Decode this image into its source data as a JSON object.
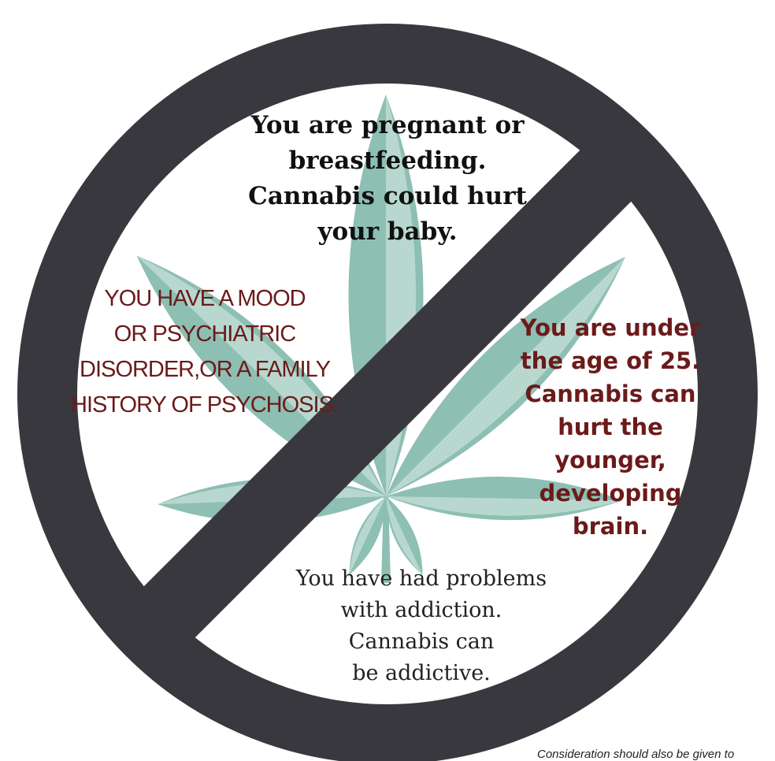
{
  "top_text": {
    "lines": [
      "You are pregnant or",
      "breastfeeding.",
      "Cannabis could hurt",
      "your baby."
    ]
  },
  "left_text": {
    "lines": [
      "YOU HAVE A MOOD",
      "OR PSYCHIATRIC",
      "DISORDER,OR A FAMILY",
      "HISTORY OF PSYCHOSIS."
    ]
  },
  "right_text": {
    "lines": [
      "You are under",
      "the age of 25.",
      "Cannabis can",
      "hurt the",
      "younger,",
      "developing",
      "brain."
    ]
  },
  "bottom_text": {
    "lines": [
      "You have had problems",
      "with addiction.",
      "Cannabis can",
      "be addictive."
    ]
  },
  "footnote": "Consideration should also be given to"
}
